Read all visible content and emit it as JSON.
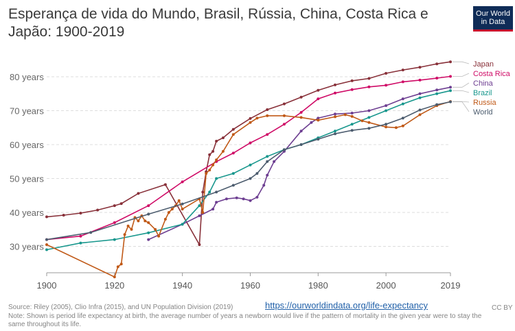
{
  "header": {
    "title": "Esperança de vida do Mundo, Brasil, Rússia, China, Costa Rica e Japão: 1900-2019",
    "logo_line1": "Our World",
    "logo_line2": "in Data"
  },
  "footer": {
    "source": "Source: Riley (2005), Clio Infra (2015), and UN Population Division (2019)",
    "link": "https://ourworldindata.org/life-expectancy",
    "license": "CC BY",
    "note": "Note: Shown is period life expectancy at birth, the average number of years a newborn would live if the pattern of mortality in the given year were to stay the same throughout its life."
  },
  "chart_data": {
    "type": "line",
    "title": "Esperança de vida do Mundo, Brasil, Rússia, China, Costa Rica e Japão: 1900-2019",
    "xlabel": "",
    "ylabel": "",
    "xlim": [
      1900,
      2019
    ],
    "ylim": [
      20,
      86
    ],
    "x_ticks": [
      1900,
      1920,
      1940,
      1960,
      1980,
      2000,
      2019
    ],
    "y_ticks": [
      {
        "value": 30,
        "label": "30 years"
      },
      {
        "value": 40,
        "label": "40 years"
      },
      {
        "value": 50,
        "label": "50 years"
      },
      {
        "value": 60,
        "label": "60 years"
      },
      {
        "value": 70,
        "label": "70 years"
      },
      {
        "value": 80,
        "label": "80 years"
      }
    ],
    "grid": "horizontal dashed",
    "legend": "right, labels at line ends",
    "series": [
      {
        "name": "Japan",
        "color": "#883039",
        "points": [
          [
            1900,
            38.7
          ],
          [
            1905,
            39.2
          ],
          [
            1910,
            39.8
          ],
          [
            1915,
            40.7
          ],
          [
            1920,
            42.0
          ],
          [
            1922,
            42.6
          ],
          [
            1927,
            45.6
          ],
          [
            1935,
            48.2
          ],
          [
            1945,
            30.5
          ],
          [
            1946,
            46
          ],
          [
            1947,
            52
          ],
          [
            1948,
            57
          ],
          [
            1949,
            58
          ],
          [
            1950,
            61
          ],
          [
            1952,
            62
          ],
          [
            1955,
            64.5
          ],
          [
            1960,
            67.7
          ],
          [
            1965,
            70.3
          ],
          [
            1970,
            72.0
          ],
          [
            1975,
            74.0
          ],
          [
            1980,
            76.0
          ],
          [
            1985,
            77.6
          ],
          [
            1990,
            78.8
          ],
          [
            1995,
            79.5
          ],
          [
            2000,
            81.0
          ],
          [
            2005,
            82.0
          ],
          [
            2010,
            82.8
          ],
          [
            2015,
            83.8
          ],
          [
            2019,
            84.4
          ]
        ]
      },
      {
        "name": "Costa Rica",
        "color": "#cf0a66",
        "points": [
          [
            1900,
            32.0
          ],
          [
            1910,
            33.0
          ],
          [
            1920,
            37.0
          ],
          [
            1930,
            42.0
          ],
          [
            1940,
            49.0
          ],
          [
            1950,
            55.0
          ],
          [
            1955,
            57.5
          ],
          [
            1960,
            60.5
          ],
          [
            1965,
            63.0
          ],
          [
            1970,
            66.0
          ],
          [
            1975,
            69.5
          ],
          [
            1980,
            73.5
          ],
          [
            1985,
            75.2
          ],
          [
            1990,
            76.2
          ],
          [
            1995,
            77.0
          ],
          [
            2000,
            77.5
          ],
          [
            2005,
            78.5
          ],
          [
            2010,
            79.0
          ],
          [
            2015,
            79.6
          ],
          [
            2019,
            80.1
          ]
        ]
      },
      {
        "name": "China",
        "color": "#6d3e91",
        "points": [
          [
            1930,
            32.0
          ],
          [
            1940,
            36.5
          ],
          [
            1945,
            39.0
          ],
          [
            1949,
            41.0
          ],
          [
            1950,
            43.0
          ],
          [
            1953,
            44.0
          ],
          [
            1956,
            44.3
          ],
          [
            1958,
            44.0
          ],
          [
            1960,
            43.5
          ],
          [
            1962,
            44.5
          ],
          [
            1964,
            48.0
          ],
          [
            1965,
            51.0
          ],
          [
            1967,
            55.0
          ],
          [
            1970,
            58.0
          ],
          [
            1975,
            64.0
          ],
          [
            1978,
            66.5
          ],
          [
            1980,
            67.8
          ],
          [
            1985,
            69.0
          ],
          [
            1990,
            69.3
          ],
          [
            1995,
            70.0
          ],
          [
            2000,
            71.5
          ],
          [
            2005,
            73.5
          ],
          [
            2010,
            75.0
          ],
          [
            2015,
            76.1
          ],
          [
            2019,
            76.9
          ]
        ]
      },
      {
        "name": "Brazil",
        "color": "#18978d",
        "points": [
          [
            1900,
            29.0
          ],
          [
            1910,
            31.0
          ],
          [
            1920,
            32.0
          ],
          [
            1930,
            34.0
          ],
          [
            1940,
            36.5
          ],
          [
            1945,
            42.0
          ],
          [
            1948,
            46.0
          ],
          [
            1950,
            50.0
          ],
          [
            1955,
            51.5
          ],
          [
            1960,
            54.0
          ],
          [
            1965,
            56.5
          ],
          [
            1970,
            58.5
          ],
          [
            1975,
            60.0
          ],
          [
            1980,
            62.0
          ],
          [
            1985,
            64.0
          ],
          [
            1990,
            66.0
          ],
          [
            1995,
            68.0
          ],
          [
            2000,
            70.0
          ],
          [
            2005,
            72.0
          ],
          [
            2010,
            73.8
          ],
          [
            2015,
            75.0
          ],
          [
            2019,
            75.9
          ]
        ]
      },
      {
        "name": "Russia",
        "color": "#c05917",
        "points": [
          [
            1900,
            30.5
          ],
          [
            1920,
            21.0
          ],
          [
            1921,
            24.0
          ],
          [
            1922,
            24.8
          ],
          [
            1923,
            33.5
          ],
          [
            1924,
            36.0
          ],
          [
            1925,
            35.0
          ],
          [
            1926,
            38.5
          ],
          [
            1927,
            37.5
          ],
          [
            1928,
            39.0
          ],
          [
            1929,
            37.5
          ],
          [
            1930,
            37.0
          ],
          [
            1932,
            35.0
          ],
          [
            1933,
            33.0
          ],
          [
            1935,
            38.0
          ],
          [
            1936,
            40.0
          ],
          [
            1937,
            41.0
          ],
          [
            1938,
            42.0
          ],
          [
            1939,
            43.5
          ],
          [
            1940,
            41.0
          ],
          [
            1945,
            44.0
          ],
          [
            1946,
            40.0
          ],
          [
            1947,
            51.5
          ],
          [
            1948,
            52.5
          ],
          [
            1949,
            54.0
          ],
          [
            1950,
            55.5
          ],
          [
            1952,
            58.0
          ],
          [
            1955,
            63.0
          ],
          [
            1960,
            66.5
          ],
          [
            1962,
            67.8
          ],
          [
            1965,
            68.5
          ],
          [
            1970,
            68.5
          ],
          [
            1975,
            68.0
          ],
          [
            1980,
            67.2
          ],
          [
            1985,
            68.2
          ],
          [
            1988,
            68.8
          ],
          [
            1990,
            68.3
          ],
          [
            1993,
            67.0
          ],
          [
            1995,
            66.5
          ],
          [
            2000,
            65.2
          ],
          [
            2003,
            65.0
          ],
          [
            2005,
            65.5
          ],
          [
            2010,
            68.8
          ],
          [
            2015,
            71.5
          ],
          [
            2019,
            72.7
          ]
        ]
      },
      {
        "name": "World",
        "color": "#4c5c6e",
        "points": [
          [
            1900,
            32.0
          ],
          [
            1913,
            34.1
          ],
          [
            1930,
            39.5
          ],
          [
            1940,
            42.5
          ],
          [
            1950,
            46.0
          ],
          [
            1955,
            48.0
          ],
          [
            1960,
            50.0
          ],
          [
            1962,
            51.5
          ],
          [
            1965,
            55.0
          ],
          [
            1970,
            58.5
          ],
          [
            1975,
            60.0
          ],
          [
            1980,
            61.6
          ],
          [
            1985,
            63.2
          ],
          [
            1990,
            64.2
          ],
          [
            1995,
            64.8
          ],
          [
            2000,
            66.0
          ],
          [
            2005,
            67.8
          ],
          [
            2010,
            70.2
          ],
          [
            2015,
            71.8
          ],
          [
            2019,
            72.6
          ]
        ]
      }
    ]
  }
}
